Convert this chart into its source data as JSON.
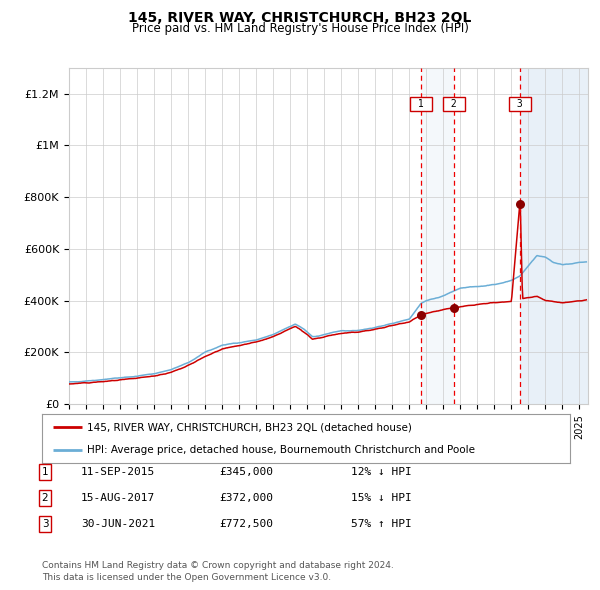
{
  "title": "145, RIVER WAY, CHRISTCHURCH, BH23 2QL",
  "subtitle": "Price paid vs. HM Land Registry's House Price Index (HPI)",
  "legend_line1": "145, RIVER WAY, CHRISTCHURCH, BH23 2QL (detached house)",
  "legend_line2": "HPI: Average price, detached house, Bournemouth Christchurch and Poole",
  "footer1": "Contains HM Land Registry data © Crown copyright and database right 2024.",
  "footer2": "This data is licensed under the Open Government Licence v3.0.",
  "transactions": [
    {
      "num": 1,
      "date": "11-SEP-2015",
      "price": "£345,000",
      "pct": "12%",
      "dir": "↓",
      "year": 2015.69
    },
    {
      "num": 2,
      "date": "15-AUG-2017",
      "price": "£372,000",
      "pct": "15%",
      "dir": "↓",
      "year": 2017.62
    },
    {
      "num": 3,
      "date": "30-JUN-2021",
      "price": "£772,500",
      "pct": "57%",
      "dir": "↑",
      "year": 2021.49
    }
  ],
  "hpi_color": "#6baed6",
  "price_color": "#cc0000",
  "dot_color": "#8b0000",
  "vline_color": "#ee0000",
  "shade_color": "#dce9f5",
  "ylim_max": 1300000,
  "xlim_start": 1995,
  "xlim_end": 2025.5,
  "grid_color": "#cccccc",
  "background_color": "#ffffff",
  "yticks": [
    0,
    200000,
    400000,
    600000,
    800000,
    1000000,
    1200000
  ],
  "ytick_labels": [
    "£0",
    "£200K",
    "£400K",
    "£600K",
    "£800K",
    "£1M",
    "£1.2M"
  ],
  "hpi_anchors": [
    [
      1995.0,
      85000
    ],
    [
      1996.0,
      90000
    ],
    [
      1997.0,
      95000
    ],
    [
      1998.0,
      102000
    ],
    [
      1999.0,
      108000
    ],
    [
      2000.0,
      118000
    ],
    [
      2001.0,
      133000
    ],
    [
      2002.0,
      160000
    ],
    [
      2003.0,
      200000
    ],
    [
      2004.0,
      228000
    ],
    [
      2005.0,
      238000
    ],
    [
      2006.0,
      248000
    ],
    [
      2007.0,
      268000
    ],
    [
      2007.8,
      295000
    ],
    [
      2008.3,
      310000
    ],
    [
      2008.8,
      290000
    ],
    [
      2009.3,
      260000
    ],
    [
      2009.8,
      265000
    ],
    [
      2010.5,
      278000
    ],
    [
      2011.0,
      282000
    ],
    [
      2012.0,
      286000
    ],
    [
      2013.0,
      296000
    ],
    [
      2014.0,
      312000
    ],
    [
      2015.0,
      330000
    ],
    [
      2015.69,
      390000
    ],
    [
      2016.0,
      400000
    ],
    [
      2017.0,
      418000
    ],
    [
      2017.62,
      438000
    ],
    [
      2018.0,
      448000
    ],
    [
      2019.0,
      455000
    ],
    [
      2020.0,
      462000
    ],
    [
      2021.0,
      478000
    ],
    [
      2021.49,
      495000
    ],
    [
      2022.0,
      535000
    ],
    [
      2022.5,
      575000
    ],
    [
      2023.0,
      568000
    ],
    [
      2023.5,
      548000
    ],
    [
      2024.0,
      538000
    ],
    [
      2024.5,
      542000
    ],
    [
      2025.0,
      548000
    ],
    [
      2025.4,
      550000
    ]
  ],
  "price_anchors": [
    [
      1995.0,
      78000
    ],
    [
      1996.0,
      82000
    ],
    [
      1997.0,
      87000
    ],
    [
      1998.0,
      93000
    ],
    [
      1999.0,
      100000
    ],
    [
      2000.0,
      109000
    ],
    [
      2001.0,
      122000
    ],
    [
      2002.0,
      150000
    ],
    [
      2003.0,
      183000
    ],
    [
      2004.0,
      213000
    ],
    [
      2005.0,
      227000
    ],
    [
      2006.0,
      240000
    ],
    [
      2007.0,
      260000
    ],
    [
      2007.8,
      285000
    ],
    [
      2008.3,
      302000
    ],
    [
      2008.8,
      278000
    ],
    [
      2009.3,
      252000
    ],
    [
      2009.8,
      257000
    ],
    [
      2010.5,
      268000
    ],
    [
      2011.0,
      273000
    ],
    [
      2012.0,
      279000
    ],
    [
      2013.0,
      289000
    ],
    [
      2014.0,
      304000
    ],
    [
      2015.0,
      318000
    ],
    [
      2015.69,
      345000
    ],
    [
      2016.0,
      352000
    ],
    [
      2017.0,
      365000
    ],
    [
      2017.62,
      372000
    ],
    [
      2018.0,
      376000
    ],
    [
      2019.0,
      385000
    ],
    [
      2020.0,
      392000
    ],
    [
      2021.0,
      397000
    ],
    [
      2021.49,
      772500
    ],
    [
      2021.52,
      772500
    ],
    [
      2021.65,
      408000
    ],
    [
      2022.0,
      412000
    ],
    [
      2022.5,
      416000
    ],
    [
      2023.0,
      402000
    ],
    [
      2023.5,
      396000
    ],
    [
      2024.0,
      392000
    ],
    [
      2024.5,
      396000
    ],
    [
      2025.0,
      400000
    ],
    [
      2025.4,
      403000
    ]
  ]
}
